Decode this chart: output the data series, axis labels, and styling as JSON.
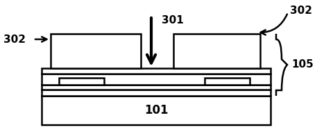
{
  "bg_color": "#ffffff",
  "line_color": "#000000",
  "fill_color": "#ffffff",
  "lw": 1.8,
  "substrate_label": "101",
  "brace_label": "105",
  "beam_label": "301",
  "contact_label": "302"
}
